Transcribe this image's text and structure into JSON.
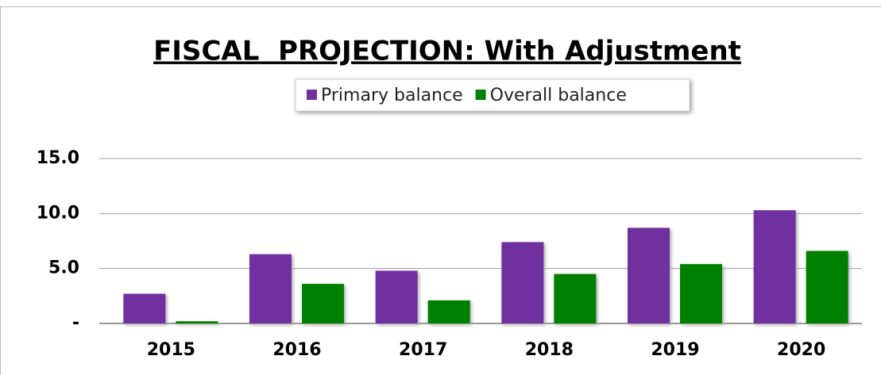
{
  "chart_data": {
    "type": "bar",
    "title": "FISCAL  PROJECTION: With Adjustment",
    "categories": [
      "2015",
      "2016",
      "2017",
      "2018",
      "2019",
      "2020"
    ],
    "series": [
      {
        "name": "Primary balance",
        "color": "#7030a0",
        "values": [
          2.7,
          6.3,
          4.8,
          7.4,
          8.7,
          10.3
        ]
      },
      {
        "name": "Overall balance",
        "color": "#008000",
        "values": [
          0.2,
          3.6,
          2.1,
          4.5,
          5.4,
          6.6
        ]
      }
    ],
    "ylim": [
      0,
      15
    ],
    "yticks": [
      {
        "value": 0,
        "label": "-"
      },
      {
        "value": 5,
        "label": "5.0"
      },
      {
        "value": 10,
        "label": "10.0"
      },
      {
        "value": 15,
        "label": "15.0"
      }
    ],
    "grid": true,
    "legend": "top"
  }
}
